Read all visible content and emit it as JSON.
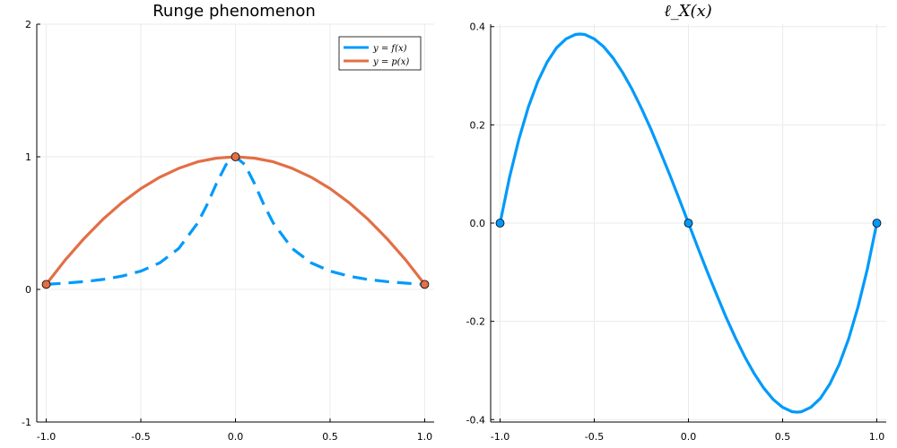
{
  "colors": {
    "blue": "#009AFA",
    "orange": "#E26F46",
    "grid": "#EBEBEB",
    "axis": "#000000"
  },
  "chart_data": [
    {
      "type": "line",
      "title": "Runge phenomenon",
      "xlim": [
        -1.05,
        1.05
      ],
      "ylim": [
        -1,
        2
      ],
      "xticks": [
        -1.0,
        -0.5,
        0.0,
        0.5,
        1.0
      ],
      "xtick_labels": [
        "-1.0",
        "-0.5",
        "0.0",
        "0.5",
        "1.0"
      ],
      "yticks": [
        -1,
        0,
        1,
        2
      ],
      "ytick_labels": [
        "-1",
        "0",
        "1",
        "2"
      ],
      "grid": true,
      "legend": "top-right",
      "series": [
        {
          "name": "y = f(x)",
          "style": "dashed",
          "color_key": "blue",
          "x": [
            -1.0,
            -0.9,
            -0.8,
            -0.7,
            -0.6,
            -0.5,
            -0.4,
            -0.3,
            -0.2,
            -0.15,
            -0.1,
            -0.05,
            0.0,
            0.05,
            0.1,
            0.15,
            0.2,
            0.3,
            0.4,
            0.5,
            0.6,
            0.7,
            0.8,
            0.9,
            1.0
          ],
          "y": [
            0.038,
            0.047,
            0.059,
            0.075,
            0.1,
            0.138,
            0.2,
            0.308,
            0.5,
            0.64,
            0.8,
            0.941,
            1.0,
            0.941,
            0.8,
            0.64,
            0.5,
            0.308,
            0.2,
            0.138,
            0.1,
            0.075,
            0.059,
            0.047,
            0.038
          ]
        },
        {
          "name": "y = p(x)",
          "style": "solid",
          "color_key": "orange",
          "x": [
            -1.0,
            -0.9,
            -0.8,
            -0.7,
            -0.6,
            -0.5,
            -0.4,
            -0.3,
            -0.2,
            -0.1,
            0.0,
            0.1,
            0.2,
            0.3,
            0.4,
            0.5,
            0.6,
            0.7,
            0.8,
            0.9,
            1.0
          ],
          "y": [
            0.038,
            0.221,
            0.384,
            0.529,
            0.654,
            0.76,
            0.846,
            0.913,
            0.962,
            0.99,
            1.0,
            0.99,
            0.962,
            0.913,
            0.846,
            0.76,
            0.654,
            0.529,
            0.384,
            0.221,
            0.038
          ]
        }
      ],
      "markers": {
        "color_key": "orange",
        "x": [
          -1.0,
          0.0,
          1.0
        ],
        "y": [
          0.038,
          1.0,
          0.038
        ]
      }
    },
    {
      "type": "line",
      "title": "ℓ_X(x)",
      "xlim": [
        -1.05,
        1.05
      ],
      "ylim": [
        -0.405,
        0.405
      ],
      "xticks": [
        -1.0,
        -0.5,
        0.0,
        0.5,
        1.0
      ],
      "xtick_labels": [
        "-1.0",
        "-0.5",
        "0.0",
        "0.5",
        "1.0"
      ],
      "yticks": [
        -0.4,
        -0.2,
        0.0,
        0.2,
        0.4
      ],
      "ytick_labels": [
        "-0.4",
        "-0.2",
        "0.0",
        "0.2",
        "0.4"
      ],
      "grid": true,
      "series": [
        {
          "name": "",
          "style": "solid",
          "color_key": "blue",
          "x": [
            -1.0,
            -0.95,
            -0.9,
            -0.85,
            -0.8,
            -0.75,
            -0.7,
            -0.65,
            -0.6,
            -0.577,
            -0.55,
            -0.5,
            -0.45,
            -0.4,
            -0.35,
            -0.3,
            -0.25,
            -0.2,
            -0.15,
            -0.1,
            -0.05,
            0.0,
            0.05,
            0.1,
            0.15,
            0.2,
            0.25,
            0.3,
            0.35,
            0.4,
            0.45,
            0.5,
            0.55,
            0.577,
            0.6,
            0.65,
            0.7,
            0.75,
            0.8,
            0.85,
            0.9,
            0.95,
            1.0
          ],
          "y": [
            0.0,
            0.093,
            0.171,
            0.236,
            0.288,
            0.328,
            0.357,
            0.375,
            0.384,
            0.385,
            0.384,
            0.375,
            0.359,
            0.336,
            0.307,
            0.273,
            0.234,
            0.192,
            0.146,
            0.099,
            0.05,
            0.0,
            -0.05,
            -0.099,
            -0.146,
            -0.192,
            -0.234,
            -0.273,
            -0.307,
            -0.336,
            -0.359,
            -0.375,
            -0.384,
            -0.385,
            -0.384,
            -0.375,
            -0.357,
            -0.328,
            -0.288,
            -0.236,
            -0.171,
            -0.093,
            0.0
          ]
        }
      ],
      "markers": {
        "color_key": "blue",
        "x": [
          -1.0,
          0.0,
          1.0
        ],
        "y": [
          0.0,
          0.0,
          0.0
        ]
      }
    }
  ]
}
